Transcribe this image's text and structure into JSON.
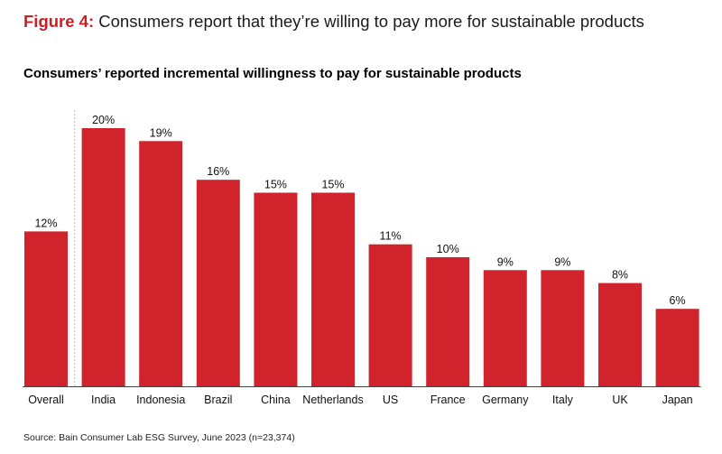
{
  "figure": {
    "label": "Figure 4:",
    "title": "Consumers report that they’re willing to pay more for sustainable products"
  },
  "source": "Source: Bain Consumer Lab ESG Survey, June 2023 (n=23,374)",
  "colors": {
    "accent": "#cc1f24",
    "bar": "#d0232b"
  },
  "chart_data": {
    "type": "bar",
    "title": "Consumers’ reported incremental willingness to pay for sustainable products",
    "xlabel": "",
    "ylabel": "",
    "ylim": [
      0,
      20
    ],
    "grid": false,
    "categories": [
      "Overall",
      "India",
      "Indonesia",
      "Brazil",
      "China",
      "Netherlands",
      "US",
      "France",
      "Germany",
      "Italy",
      "UK",
      "Japan"
    ],
    "values": [
      12,
      20,
      19,
      16,
      15,
      15,
      11,
      10,
      9,
      9,
      8,
      6
    ],
    "value_labels": [
      "12%",
      "20%",
      "19%",
      "16%",
      "15%",
      "15%",
      "11%",
      "10%",
      "9%",
      "9%",
      "8%",
      "6%"
    ]
  }
}
